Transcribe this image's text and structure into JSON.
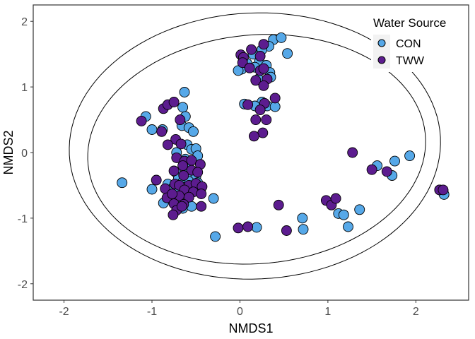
{
  "chart_data": {
    "type": "scatter",
    "title": "",
    "xlabel": "NMDS1",
    "ylabel": "NMDS2",
    "xlim": [
      -2.35,
      2.6
    ],
    "ylim": [
      -2.25,
      2.25
    ],
    "x_ticks": [
      -2,
      -1,
      0,
      1,
      2
    ],
    "y_ticks": [
      -2,
      -1,
      0,
      1,
      2
    ],
    "x_tick_labels": [
      "-2",
      "-1",
      "0",
      "1",
      "2"
    ],
    "y_tick_labels": [
      "-2",
      "-1",
      "0",
      "1",
      "2"
    ],
    "grid": false,
    "legend": {
      "title": "Water Source",
      "position": "top-right"
    },
    "series": [
      {
        "name": "CON",
        "color": "#56a8e8",
        "points": [
          [
            0.38,
            1.72
          ],
          [
            0.47,
            1.75
          ],
          [
            0.54,
            1.51
          ],
          [
            0.33,
            1.62
          ],
          [
            0.25,
            1.57
          ],
          [
            0.15,
            1.5
          ],
          [
            0.22,
            1.38
          ],
          [
            0.3,
            1.33
          ],
          [
            0.17,
            1.3
          ],
          [
            0.02,
            1.27
          ],
          [
            -0.02,
            1.25
          ],
          [
            0.08,
            1.36
          ],
          [
            0.34,
            1.22
          ],
          [
            0.35,
            1.15
          ],
          [
            0.21,
            1.12
          ],
          [
            0.25,
            0.77
          ],
          [
            0.31,
            0.71
          ],
          [
            0.4,
            0.7
          ],
          [
            0.17,
            0.71
          ],
          [
            0.05,
            0.74
          ],
          [
            -0.63,
            0.92
          ],
          [
            -0.65,
            0.69
          ],
          [
            -0.62,
            0.55
          ],
          [
            -1.07,
            0.55
          ],
          [
            -1.0,
            0.35
          ],
          [
            -0.88,
            0.35
          ],
          [
            -0.66,
            0.41
          ],
          [
            -0.58,
            0.38
          ],
          [
            -0.53,
            0.32
          ],
          [
            -0.6,
            0.12
          ],
          [
            -0.55,
            0.05
          ],
          [
            -0.5,
            0.06
          ],
          [
            -0.72,
            0.0
          ],
          [
            -0.48,
            -0.05
          ],
          [
            -0.62,
            -0.1
          ],
          [
            -0.73,
            -0.3
          ],
          [
            -0.6,
            -0.25
          ],
          [
            -0.55,
            -0.31
          ],
          [
            -0.5,
            -0.36
          ],
          [
            -0.7,
            -0.4
          ],
          [
            -0.65,
            -0.45
          ],
          [
            -0.58,
            -0.44
          ],
          [
            -0.48,
            -0.46
          ],
          [
            -0.82,
            -0.48
          ],
          [
            -0.75,
            -0.52
          ],
          [
            -0.69,
            -0.58
          ],
          [
            -0.62,
            -0.62
          ],
          [
            -0.56,
            -0.55
          ],
          [
            -0.8,
            -0.65
          ],
          [
            -0.7,
            -0.7
          ],
          [
            -0.6,
            -0.75
          ],
          [
            -0.78,
            -0.72
          ],
          [
            -0.45,
            -0.58
          ],
          [
            -0.3,
            -0.7
          ],
          [
            -0.87,
            -0.77
          ],
          [
            -0.65,
            -0.85
          ],
          [
            -0.55,
            -0.82
          ],
          [
            -1.34,
            -0.46
          ],
          [
            -1.0,
            -0.56
          ],
          [
            -0.28,
            -1.28
          ],
          [
            0.19,
            -1.14
          ],
          [
            0.71,
            -1.0
          ],
          [
            0.72,
            -1.17
          ],
          [
            1.12,
            -0.93
          ],
          [
            1.18,
            -0.95
          ],
          [
            1.23,
            -1.13
          ],
          [
            1.36,
            -0.87
          ],
          [
            1.56,
            -0.2
          ],
          [
            1.73,
            -0.35
          ],
          [
            1.76,
            -0.13
          ],
          [
            1.93,
            -0.05
          ],
          [
            2.27,
            -0.57
          ],
          [
            2.31,
            -0.58
          ],
          [
            2.32,
            -0.64
          ]
        ]
      },
      {
        "name": "TWW",
        "color": "#5c1c8f",
        "points": [
          [
            0.01,
            1.49
          ],
          [
            0.04,
            1.45
          ],
          [
            0.13,
            1.57
          ],
          [
            0.23,
            1.47
          ],
          [
            0.27,
            1.65
          ],
          [
            0.03,
            1.37
          ],
          [
            0.11,
            1.29
          ],
          [
            0.23,
            1.25
          ],
          [
            0.27,
            1.28
          ],
          [
            0.18,
            1.1
          ],
          [
            0.31,
            1.12
          ],
          [
            0.27,
            1.02
          ],
          [
            0.28,
            0.75
          ],
          [
            0.09,
            0.73
          ],
          [
            0.23,
            0.65
          ],
          [
            0.4,
            0.83
          ],
          [
            0.18,
            0.5
          ],
          [
            0.3,
            0.5
          ],
          [
            0.26,
            0.3
          ],
          [
            0.16,
            0.25
          ],
          [
            -1.12,
            0.48
          ],
          [
            -0.87,
            0.67
          ],
          [
            -0.82,
            0.73
          ],
          [
            -0.75,
            0.77
          ],
          [
            -0.73,
            0.2
          ],
          [
            -0.68,
            0.5
          ],
          [
            -0.89,
            0.32
          ],
          [
            -0.82,
            0.12
          ],
          [
            -0.67,
            0.13
          ],
          [
            -0.72,
            -0.08
          ],
          [
            -0.63,
            -0.13
          ],
          [
            -0.55,
            -0.12
          ],
          [
            -0.45,
            -0.18
          ],
          [
            -0.65,
            -0.2
          ],
          [
            -0.75,
            -0.28
          ],
          [
            -0.55,
            -0.27
          ],
          [
            -0.48,
            -0.3
          ],
          [
            -0.64,
            -0.35
          ],
          [
            -0.74,
            -0.48
          ],
          [
            -0.69,
            -0.5
          ],
          [
            -0.58,
            -0.5
          ],
          [
            -0.5,
            -0.47
          ],
          [
            -0.43,
            -0.52
          ],
          [
            -0.85,
            -0.55
          ],
          [
            -0.63,
            -0.57
          ],
          [
            -0.53,
            -0.6
          ],
          [
            -0.69,
            -0.66
          ],
          [
            -0.58,
            -0.68
          ],
          [
            -0.44,
            -0.63
          ],
          [
            -0.83,
            -0.69
          ],
          [
            -0.75,
            -0.78
          ],
          [
            -0.64,
            -0.79
          ],
          [
            -0.72,
            -0.88
          ],
          [
            -0.66,
            -0.82
          ],
          [
            -0.76,
            -0.95
          ],
          [
            -0.44,
            -0.82
          ],
          [
            -0.95,
            -0.42
          ],
          [
            -0.77,
            -0.63
          ],
          [
            0.44,
            -0.8
          ],
          [
            -0.02,
            -1.15
          ],
          [
            0.09,
            -1.13
          ],
          [
            0.53,
            -1.19
          ],
          [
            0.98,
            -0.73
          ],
          [
            1.04,
            -0.8
          ],
          [
            1.09,
            -0.7
          ],
          [
            1.28,
            0.0
          ],
          [
            1.5,
            -0.26
          ],
          [
            1.67,
            -0.29
          ],
          [
            2.27,
            -0.57
          ],
          [
            2.31,
            -0.57
          ]
        ]
      }
    ],
    "ellipses": [
      {
        "center": [
          0.17,
          0.1
        ],
        "rx": 2.12,
        "ry": 2.02,
        "rotation_deg": 18
      },
      {
        "center": [
          0.19,
          0.05
        ],
        "rx": 1.94,
        "ry": 1.73,
        "rotation_deg": 18
      }
    ]
  }
}
